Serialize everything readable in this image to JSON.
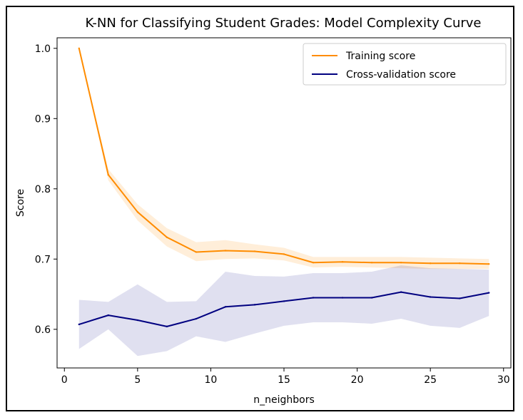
{
  "chart_data": {
    "type": "line",
    "title": "K-NN for Classifying Student Grades: Model Complexity Curve",
    "xlabel": "n_neighbors",
    "ylabel": "Score",
    "xlim": [
      -0.5,
      30.5
    ],
    "ylim": [
      0.545,
      1.015
    ],
    "xticks": [
      "0",
      "5",
      "10",
      "15",
      "20",
      "25",
      "30"
    ],
    "yticks": [
      "0.6",
      "0.7",
      "0.8",
      "0.9",
      "1.0"
    ],
    "grid": false,
    "legend_position": "top-right",
    "x": [
      1,
      3,
      5,
      7,
      9,
      11,
      13,
      15,
      17,
      19,
      21,
      23,
      25,
      27,
      29
    ],
    "series": [
      {
        "name": "Training score",
        "color": "#ff8c00",
        "values": [
          1.0,
          0.82,
          0.767,
          0.731,
          0.71,
          0.712,
          0.711,
          0.707,
          0.695,
          0.696,
          0.695,
          0.695,
          0.694,
          0.694,
          0.693
        ],
        "band_low": [
          1.0,
          0.812,
          0.755,
          0.718,
          0.697,
          0.7,
          0.701,
          0.698,
          0.688,
          0.689,
          0.688,
          0.687,
          0.686,
          0.686,
          0.686
        ],
        "band_high": [
          1.0,
          0.828,
          0.778,
          0.744,
          0.724,
          0.727,
          0.721,
          0.716,
          0.703,
          0.703,
          0.703,
          0.703,
          0.702,
          0.701,
          0.7
        ]
      },
      {
        "name": "Cross-validation score",
        "color": "#000080",
        "values": [
          0.607,
          0.62,
          0.613,
          0.604,
          0.615,
          0.632,
          0.635,
          0.64,
          0.645,
          0.645,
          0.645,
          0.653,
          0.646,
          0.644,
          0.652
        ],
        "band_low": [
          0.572,
          0.6,
          0.562,
          0.569,
          0.59,
          0.582,
          0.594,
          0.605,
          0.61,
          0.61,
          0.608,
          0.615,
          0.605,
          0.602,
          0.619
        ],
        "band_high": [
          0.642,
          0.639,
          0.664,
          0.639,
          0.64,
          0.682,
          0.676,
          0.675,
          0.68,
          0.68,
          0.682,
          0.691,
          0.687,
          0.686,
          0.685
        ]
      }
    ]
  }
}
